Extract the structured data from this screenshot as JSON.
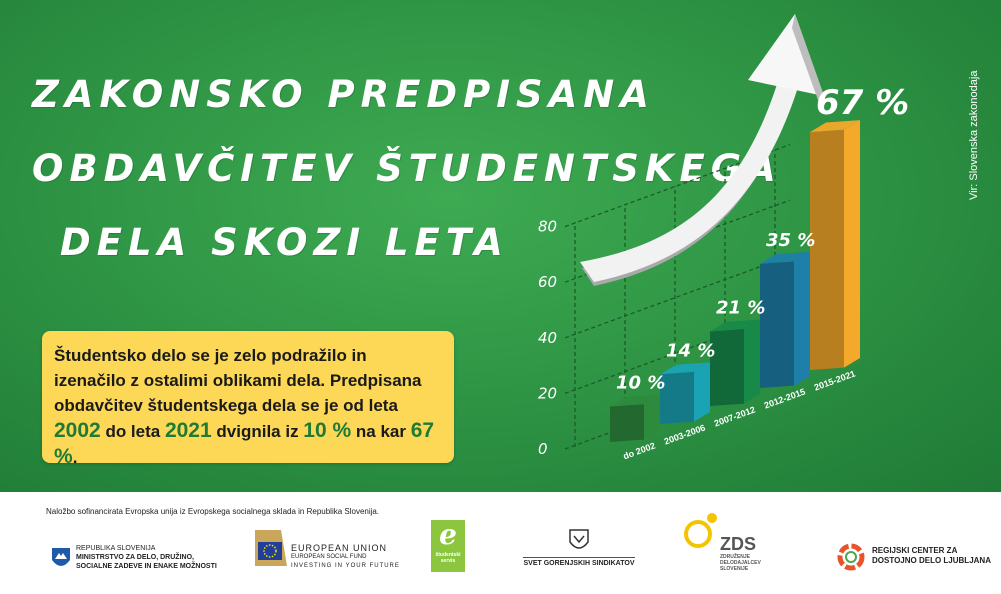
{
  "title": {
    "line1": "ZAKONSKO PREDPISANA",
    "line2": "OBDAVČITEV ŠTUDENTSKEGA",
    "line3": "DELA SKOZI LETA"
  },
  "source": "Vir: Slovenska zakonodaja",
  "note": {
    "part1": "Študentsko delo se je zelo podražilo in izenačilo z ostalimi oblikami dela. Predpisana obdavčitev študentskega dela se je od leta ",
    "year_from": "2002",
    "part2": " do leta ",
    "year_to": "2021",
    "part3": " dvignila iz ",
    "pct_from": "10 %",
    "part4": " na kar ",
    "pct_to": "67 %",
    "part5": "."
  },
  "chart_data": {
    "type": "bar",
    "categories": [
      "do 2002",
      "2003-2006",
      "2007-2012",
      "2012-2015",
      "2015-2021"
    ],
    "values": [
      10,
      14,
      21,
      35,
      67
    ],
    "value_labels": [
      "10 %",
      "14 %",
      "21 %",
      "35 %",
      "67 %"
    ],
    "yticks": [
      0,
      20,
      40,
      60,
      80
    ],
    "ylim": [
      0,
      80
    ],
    "colors": [
      "#2e8b3e",
      "#1aa3b5",
      "#178a4a",
      "#1e7fa8",
      "#f4a92a"
    ],
    "grid": true
  },
  "footer": {
    "funding_note": "Naložbo sofinancirata Evropska unija iz Evropskega socialnega sklada in Republika Slovenija.",
    "logo1_line1": "REPUBLIKA SLOVENIJA",
    "logo1_line2": "MINISTRSTVO ZA DELO, DRUŽINO,",
    "logo1_line3": "SOCIALNE ZADEVE IN ENAKE MOŽNOSTI",
    "logo2_line1": "EUROPEAN UNION",
    "logo2_line2": "EUROPEAN SOCIAL FUND",
    "logo2_line3": "INVESTING IN YOUR FUTURE",
    "logo3_letter": "e",
    "logo3_text": "študentski servis",
    "logo4_text": "SVET GORENJSKIH SINDIKATOV",
    "logo5_big": "ZDS",
    "logo5_line1": "ZDRUŽENJE",
    "logo5_line2": "DELODAJALCEV",
    "logo5_line3": "SLOVENIJE",
    "logo6_line1": "REGIJSKI CENTER ZA",
    "logo6_line2": "DOSTOJNO DELO LJUBLJANA"
  }
}
